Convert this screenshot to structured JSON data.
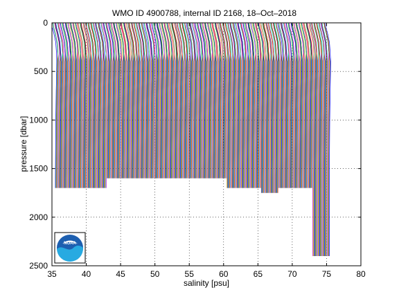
{
  "chart_data": {
    "type": "line",
    "title": "WMO ID 4900788, internal ID 2168, 18–Oct–2018",
    "xlabel": "salinity [psu]",
    "ylabel": "pressure [dbar]",
    "xlim": [
      35,
      80
    ],
    "ylim": [
      2500,
      0
    ],
    "y_reversed": true,
    "grid": true,
    "x_ticks": [
      35,
      40,
      45,
      50,
      55,
      60,
      65,
      70,
      75,
      80
    ],
    "y_ticks": [
      0,
      500,
      1000,
      1500,
      2000,
      2500
    ],
    "series_colors": [
      "#0000ff",
      "#00a000",
      "#ff0000",
      "#00c8c8",
      "#c800c8",
      "#c8a000",
      "#303030"
    ],
    "profile_template": {
      "pressure": [
        5,
        50,
        100,
        150,
        200,
        300,
        400,
        500,
        600,
        700,
        800,
        900,
        1000,
        1100,
        1200,
        1300,
        1400,
        1500,
        1600,
        1700
      ],
      "salinity_offset": [
        -0.25,
        -0.15,
        0.05,
        0.2,
        0.35,
        0.45,
        0.5,
        0.48,
        0.45,
        0.42,
        0.4,
        0.38,
        0.36,
        0.35,
        0.34,
        0.33,
        0.32,
        0.31,
        0.3,
        0.3
      ]
    },
    "profile_shift_per_cycle": 0.1,
    "first_profile_start": 35.2,
    "profile_count": 400,
    "max_pressures": [
      1700,
      1700,
      1700,
      1650,
      1650,
      1600,
      1600,
      1650,
      1600,
      1650,
      1700,
      1700,
      1750,
      1700,
      1700,
      2400
    ],
    "logo": {
      "name": "noaa-logo",
      "text": "NOAA"
    }
  }
}
